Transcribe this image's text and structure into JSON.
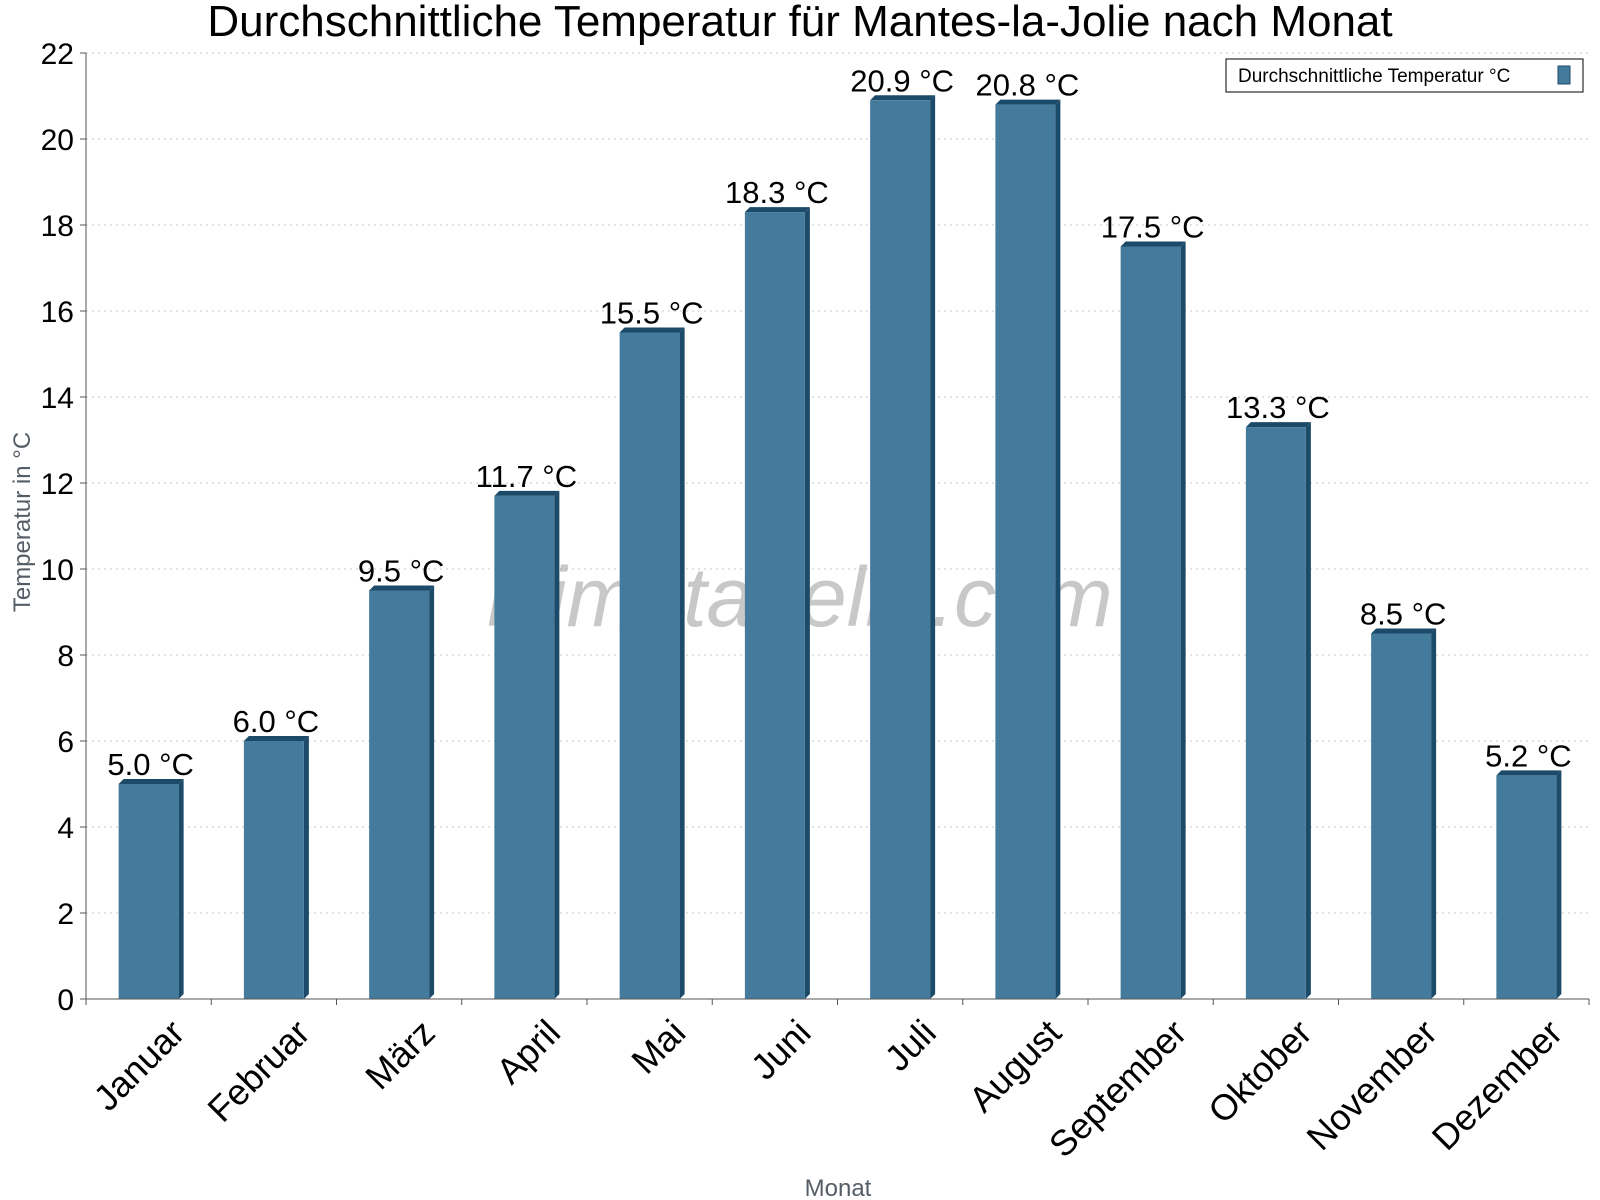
{
  "colors": {
    "bar": "#447b9d",
    "bar_dark": "#1c4a69",
    "grid": "#c8c8c8",
    "axis": "#555555"
  },
  "watermark": "klimatabelle.com",
  "chart_data": {
    "type": "bar",
    "title": "Durchschnittliche Temperatur für Mantes-la-Jolie nach Monat",
    "xlabel": "Monat",
    "ylabel": "Temperatur in °C",
    "ylim": [
      0,
      22
    ],
    "yticks": [
      "0",
      "2",
      "4",
      "6",
      "8",
      "10",
      "12",
      "14",
      "16",
      "18",
      "20",
      "22"
    ],
    "grid": true,
    "legend_position": "top-right",
    "categories": [
      "Januar",
      "Februar",
      "März",
      "April",
      "Mai",
      "Juni",
      "Juli",
      "August",
      "September",
      "Oktober",
      "November",
      "Dezember"
    ],
    "series": [
      {
        "name": "Durchschnittliche Temperatur °C",
        "values": [
          5.0,
          6.0,
          9.5,
          11.7,
          15.5,
          18.3,
          20.9,
          20.8,
          17.5,
          13.3,
          8.5,
          5.2
        ],
        "labels": [
          "5.0 °C",
          "6.0 °C",
          "9.5 °C",
          "11.7 °C",
          "15.5 °C",
          "18.3 °C",
          "20.9 °C",
          "20.8 °C",
          "17.5 °C",
          "13.3 °C",
          "8.5 °C",
          "5.2 °C"
        ]
      }
    ]
  }
}
